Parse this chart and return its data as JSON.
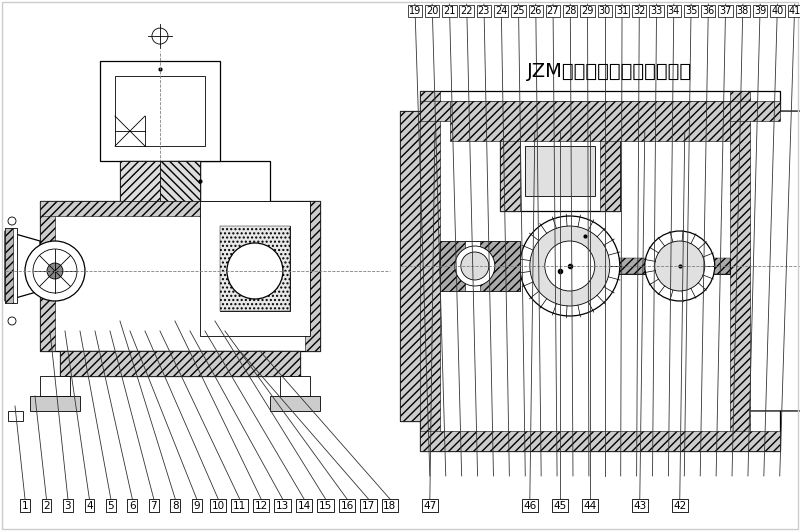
{
  "title": "JZM型系列传动端部件结构图",
  "bg_color": "#ffffff",
  "line_color": "#000000",
  "hatch_color": "#000000",
  "title_fontsize": 14,
  "label_fontsize": 7.5,
  "left_labels": [
    "1",
    "2",
    "3",
    "4",
    "5",
    "6",
    "7",
    "8",
    "9",
    "10",
    "11",
    "12",
    "13",
    "14",
    "15",
    "16",
    "17",
    "18"
  ],
  "right_top_labels": [
    "19",
    "20",
    "21",
    "22",
    "23",
    "24",
    "25",
    "26",
    "27",
    "28",
    "29",
    "30",
    "31",
    "32",
    "33",
    "34",
    "35",
    "36",
    "37",
    "38",
    "39",
    "40",
    "41"
  ],
  "right_bottom_labels": [
    "47",
    "46",
    "45",
    "44",
    "43",
    "42"
  ]
}
